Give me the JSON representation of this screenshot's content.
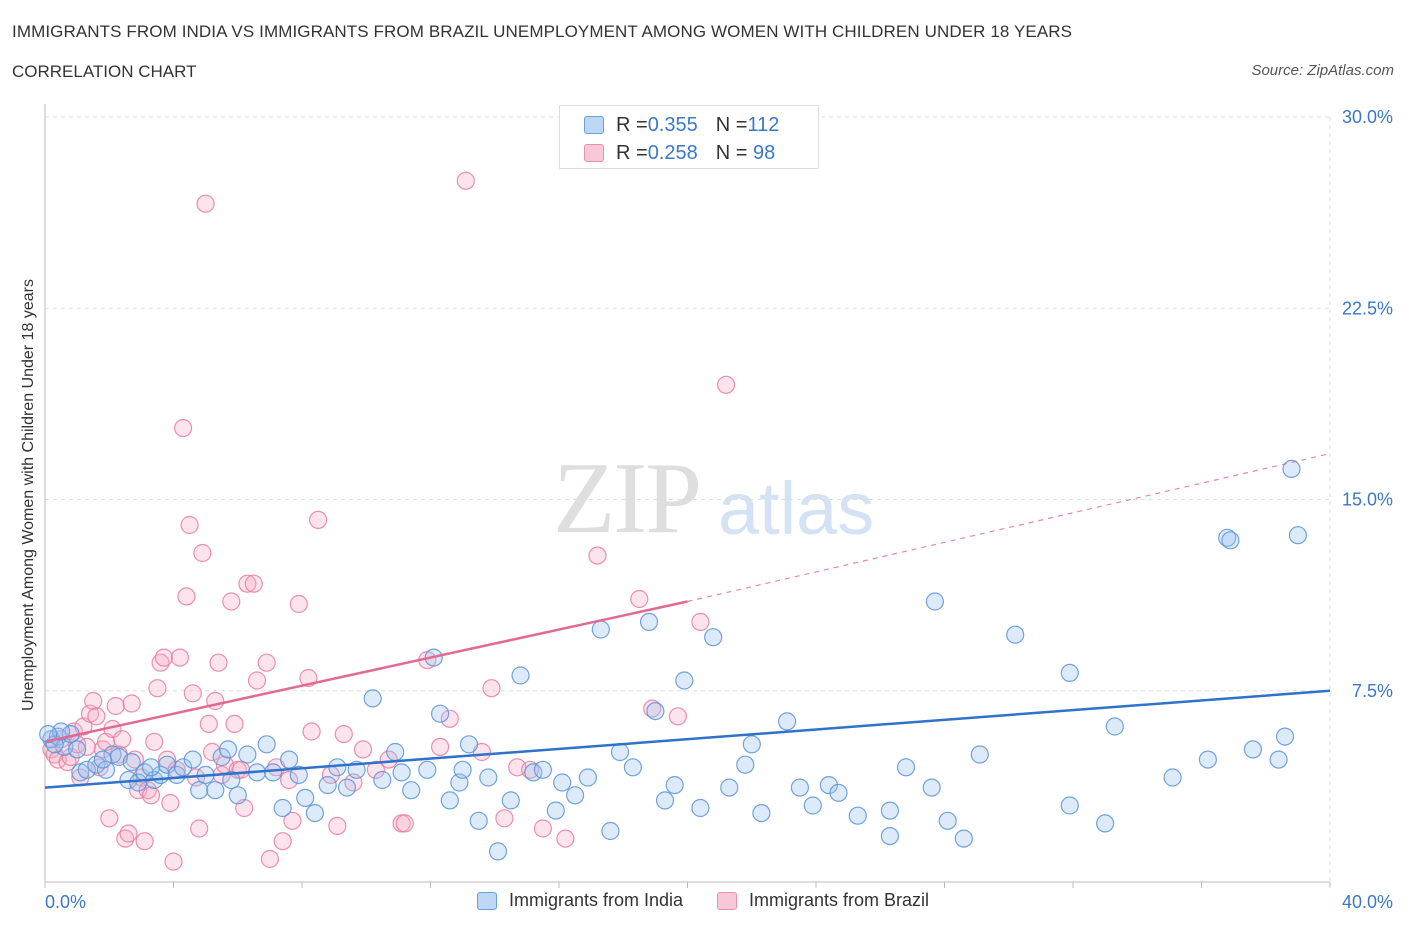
{
  "header": {
    "title": "IMMIGRANTS FROM INDIA VS IMMIGRANTS FROM BRAZIL UNEMPLOYMENT AMONG WOMEN WITH CHILDREN UNDER 18 YEARS",
    "subtitle": "CORRELATION CHART",
    "source": "Source: ZipAtlas.com"
  },
  "watermark": {
    "zip": "ZIP",
    "atlas": "atlas"
  },
  "legend": {
    "india": {
      "r_label": "R = ",
      "r_value": "0.355",
      "n_label": "N = ",
      "n_value": "112"
    },
    "brazil": {
      "r_label": "R = ",
      "r_value": "0.258",
      "n_label": "N = ",
      "n_value": " 98"
    }
  },
  "colors": {
    "india": "#5b93d8",
    "india_fill": "rgba(159,196,240,0.35)",
    "brazil": "#e87ca0",
    "brazil_fill": "rgba(246,176,200,0.35)",
    "india_line": "#2e72c9",
    "brazil_line": "#e26994",
    "tick_text": "#3a78c9",
    "grid": "#dddddd"
  },
  "chart_data": {
    "type": "scatter",
    "title": "IMMIGRANTS FROM INDIA VS IMMIGRANTS FROM BRAZIL UNEMPLOYMENT AMONG WOMEN WITH CHILDREN UNDER 18 YEARS",
    "subtitle": "CORRELATION CHART",
    "xlabel": "",
    "ylabel": "Unemployment Among Women with Children Under 18 years",
    "xlim": [
      0,
      40
    ],
    "ylim": [
      0,
      30
    ],
    "x_tick_labels": [
      "0.0%",
      "40.0%"
    ],
    "y_tick_labels": [
      "7.5%",
      "15.0%",
      "22.5%",
      "30.0%"
    ],
    "y_ticks": [
      7.5,
      15.0,
      22.5,
      30.0
    ],
    "grid": true,
    "legend_position": "top-center",
    "series": [
      {
        "name": "Immigrants from India",
        "color": "#5b93d8",
        "trend": {
          "x": [
            0,
            40
          ],
          "y": [
            3.7,
            7.5
          ],
          "style": "solid"
        },
        "points": [
          [
            0.2,
            5.6
          ],
          [
            0.4,
            5.7
          ],
          [
            0.6,
            5.3
          ],
          [
            0.8,
            5.8
          ],
          [
            1.1,
            4.3
          ],
          [
            1.3,
            4.4
          ],
          [
            1.6,
            4.6
          ],
          [
            1.9,
            4.4
          ],
          [
            2.1,
            5.0
          ],
          [
            2.3,
            4.9
          ],
          [
            2.6,
            4.0
          ],
          [
            2.9,
            3.9
          ],
          [
            3.1,
            4.3
          ],
          [
            3.4,
            4.0
          ],
          [
            3.6,
            4.2
          ],
          [
            3.8,
            4.6
          ],
          [
            4.1,
            4.2
          ],
          [
            4.3,
            4.5
          ],
          [
            4.6,
            4.8
          ],
          [
            4.8,
            3.6
          ],
          [
            5.0,
            4.2
          ],
          [
            5.3,
            3.6
          ],
          [
            5.5,
            4.9
          ],
          [
            5.8,
            4.0
          ],
          [
            6.0,
            3.4
          ],
          [
            6.3,
            5.0
          ],
          [
            6.6,
            4.3
          ],
          [
            6.9,
            5.4
          ],
          [
            7.1,
            4.3
          ],
          [
            7.4,
            2.9
          ],
          [
            7.6,
            4.8
          ],
          [
            7.9,
            4.2
          ],
          [
            8.1,
            3.3
          ],
          [
            8.4,
            2.7
          ],
          [
            8.8,
            3.8
          ],
          [
            9.1,
            4.5
          ],
          [
            9.4,
            3.7
          ],
          [
            9.7,
            4.4
          ],
          [
            10.2,
            7.2
          ],
          [
            10.5,
            4.0
          ],
          [
            10.9,
            5.1
          ],
          [
            11.1,
            4.3
          ],
          [
            11.4,
            3.6
          ],
          [
            11.9,
            4.4
          ],
          [
            12.1,
            8.8
          ],
          [
            12.3,
            6.6
          ],
          [
            12.6,
            3.2
          ],
          [
            12.9,
            3.9
          ],
          [
            13.2,
            5.4
          ],
          [
            13.5,
            2.4
          ],
          [
            13.8,
            4.1
          ],
          [
            14.1,
            1.2
          ],
          [
            14.5,
            3.2
          ],
          [
            14.8,
            8.1
          ],
          [
            15.2,
            4.3
          ],
          [
            15.5,
            4.4
          ],
          [
            15.9,
            2.8
          ],
          [
            16.1,
            3.9
          ],
          [
            16.5,
            3.4
          ],
          [
            16.9,
            4.1
          ],
          [
            17.3,
            9.9
          ],
          [
            17.6,
            2.0
          ],
          [
            17.9,
            5.1
          ],
          [
            18.3,
            4.5
          ],
          [
            18.8,
            10.2
          ],
          [
            19.0,
            6.7
          ],
          [
            19.3,
            3.2
          ],
          [
            19.6,
            3.8
          ],
          [
            19.9,
            7.9
          ],
          [
            20.4,
            2.9
          ],
          [
            20.8,
            9.6
          ],
          [
            21.3,
            3.7
          ],
          [
            21.8,
            4.6
          ],
          [
            22.0,
            5.4
          ],
          [
            22.3,
            2.7
          ],
          [
            23.1,
            6.3
          ],
          [
            23.5,
            3.7
          ],
          [
            23.9,
            3.0
          ],
          [
            24.4,
            3.8
          ],
          [
            24.7,
            3.5
          ],
          [
            25.3,
            2.6
          ],
          [
            26.3,
            1.8
          ],
          [
            26.3,
            2.8
          ],
          [
            26.8,
            4.5
          ],
          [
            27.6,
            3.7
          ],
          [
            27.7,
            11.0
          ],
          [
            28.1,
            2.4
          ],
          [
            28.6,
            1.7
          ],
          [
            29.1,
            5.0
          ],
          [
            30.2,
            9.7
          ],
          [
            31.9,
            8.2
          ],
          [
            31.9,
            3.0
          ],
          [
            33.0,
            2.3
          ],
          [
            33.3,
            6.1
          ],
          [
            35.1,
            4.1
          ],
          [
            36.2,
            4.8
          ],
          [
            36.8,
            13.5
          ],
          [
            36.9,
            13.4
          ],
          [
            37.6,
            5.2
          ],
          [
            38.4,
            4.8
          ],
          [
            38.6,
            5.7
          ],
          [
            38.8,
            16.2
          ],
          [
            39.0,
            13.6
          ],
          [
            0.3,
            5.4
          ],
          [
            0.5,
            5.9
          ],
          [
            1.0,
            5.2
          ],
          [
            1.8,
            4.8
          ],
          [
            2.7,
            4.7
          ],
          [
            3.3,
            4.5
          ],
          [
            0.1,
            5.8
          ],
          [
            5.7,
            5.2
          ],
          [
            13.0,
            4.4
          ]
        ]
      },
      {
        "name": "Immigrants from Brazil",
        "color": "#e87ca0",
        "trend": {
          "x": [
            0,
            20
          ],
          "y": [
            5.5,
            11.0
          ],
          "style": "solid"
        },
        "trend_extension": {
          "x": [
            20,
            40
          ],
          "y": [
            11.0,
            16.8
          ],
          "style": "dashed"
        },
        "points": [
          [
            0.2,
            5.2
          ],
          [
            0.3,
            5.0
          ],
          [
            0.4,
            4.8
          ],
          [
            0.5,
            5.6
          ],
          [
            0.7,
            4.7
          ],
          [
            0.8,
            4.9
          ],
          [
            0.9,
            5.9
          ],
          [
            1.0,
            5.4
          ],
          [
            1.1,
            4.1
          ],
          [
            1.2,
            6.1
          ],
          [
            1.3,
            5.3
          ],
          [
            1.4,
            6.6
          ],
          [
            1.5,
            7.1
          ],
          [
            1.6,
            6.5
          ],
          [
            1.7,
            4.5
          ],
          [
            1.8,
            5.2
          ],
          [
            1.9,
            5.5
          ],
          [
            2.0,
            2.5
          ],
          [
            2.1,
            6.0
          ],
          [
            2.2,
            6.9
          ],
          [
            2.3,
            5.0
          ],
          [
            2.4,
            5.6
          ],
          [
            2.5,
            1.7
          ],
          [
            2.6,
            1.9
          ],
          [
            2.7,
            7.0
          ],
          [
            2.8,
            4.8
          ],
          [
            2.9,
            3.6
          ],
          [
            3.0,
            4.1
          ],
          [
            3.1,
            1.6
          ],
          [
            3.2,
            3.6
          ],
          [
            3.3,
            3.4
          ],
          [
            3.4,
            5.5
          ],
          [
            3.5,
            7.6
          ],
          [
            3.6,
            8.6
          ],
          [
            3.7,
            8.8
          ],
          [
            3.8,
            4.8
          ],
          [
            3.9,
            3.1
          ],
          [
            4.0,
            0.8
          ],
          [
            4.1,
            4.4
          ],
          [
            4.2,
            8.8
          ],
          [
            4.3,
            17.8
          ],
          [
            4.4,
            11.2
          ],
          [
            4.5,
            14.0
          ],
          [
            4.6,
            7.4
          ],
          [
            4.7,
            4.1
          ],
          [
            4.8,
            2.1
          ],
          [
            4.9,
            12.9
          ],
          [
            5.0,
            26.6
          ],
          [
            5.1,
            6.2
          ],
          [
            5.2,
            5.1
          ],
          [
            5.3,
            7.1
          ],
          [
            5.4,
            8.6
          ],
          [
            5.5,
            4.2
          ],
          [
            5.6,
            4.6
          ],
          [
            5.8,
            11.0
          ],
          [
            5.9,
            6.2
          ],
          [
            6.0,
            4.4
          ],
          [
            6.1,
            4.4
          ],
          [
            6.2,
            2.9
          ],
          [
            6.3,
            11.7
          ],
          [
            6.5,
            11.7
          ],
          [
            6.6,
            7.9
          ],
          [
            6.9,
            8.6
          ],
          [
            7.0,
            0.9
          ],
          [
            7.2,
            4.5
          ],
          [
            7.4,
            1.6
          ],
          [
            7.6,
            4.0
          ],
          [
            7.7,
            2.4
          ],
          [
            7.9,
            10.9
          ],
          [
            8.2,
            8.0
          ],
          [
            8.3,
            5.9
          ],
          [
            8.5,
            14.2
          ],
          [
            8.9,
            4.2
          ],
          [
            9.1,
            2.2
          ],
          [
            9.3,
            5.8
          ],
          [
            9.6,
            3.9
          ],
          [
            9.9,
            5.2
          ],
          [
            10.3,
            4.4
          ],
          [
            10.7,
            4.8
          ],
          [
            11.1,
            2.3
          ],
          [
            11.2,
            2.3
          ],
          [
            11.9,
            8.7
          ],
          [
            12.3,
            5.3
          ],
          [
            12.6,
            6.4
          ],
          [
            13.1,
            27.5
          ],
          [
            13.6,
            5.1
          ],
          [
            13.9,
            7.6
          ],
          [
            14.3,
            2.5
          ],
          [
            14.7,
            4.5
          ],
          [
            15.1,
            4.4
          ],
          [
            15.5,
            2.1
          ],
          [
            16.2,
            1.7
          ],
          [
            17.2,
            12.8
          ],
          [
            18.5,
            11.1
          ],
          [
            18.9,
            6.8
          ],
          [
            19.7,
            6.5
          ],
          [
            20.4,
            10.2
          ],
          [
            21.2,
            19.5
          ]
        ]
      }
    ]
  },
  "bottom_legend": {
    "india_label": "Immigrants from India",
    "brazil_label": "Immigrants from Brazil"
  }
}
